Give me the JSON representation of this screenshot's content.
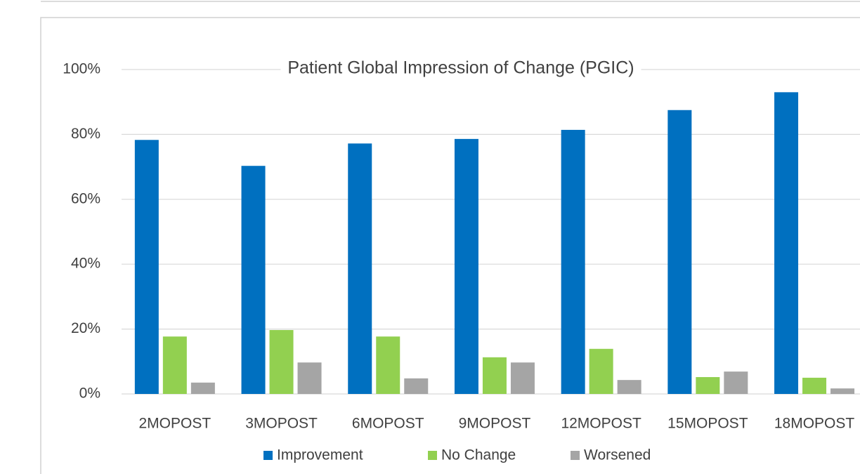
{
  "chart_data": {
    "type": "bar",
    "title": "Patient Global Impression of Change (PGIC)",
    "categories": [
      "2MOPOST",
      "3MOPOST",
      "6MOPOST",
      "9MOPOST",
      "12MOPOST",
      "15MOPOST",
      "18MOPOST"
    ],
    "series": [
      {
        "name": "Improvement",
        "color": "#0070c0",
        "values": [
          78.3,
          70.3,
          77.2,
          78.6,
          81.4,
          87.5,
          93.0
        ]
      },
      {
        "name": "No Change",
        "color": "#92d050",
        "values": [
          17.7,
          19.7,
          17.7,
          11.3,
          13.9,
          5.2,
          5.0
        ]
      },
      {
        "name": "Worsened",
        "color": "#a5a5a5",
        "values": [
          3.5,
          9.7,
          4.8,
          9.7,
          4.3,
          6.9,
          1.7
        ]
      }
    ],
    "ylim": [
      0,
      100
    ],
    "yticks": [
      {
        "value": 0,
        "label": "0%"
      },
      {
        "value": 20,
        "label": "20%"
      },
      {
        "value": 40,
        "label": "40%"
      },
      {
        "value": 60,
        "label": "60%"
      },
      {
        "value": 80,
        "label": "80%"
      },
      {
        "value": 100,
        "label": "100%"
      }
    ],
    "grid": true,
    "legend": "bottom"
  }
}
